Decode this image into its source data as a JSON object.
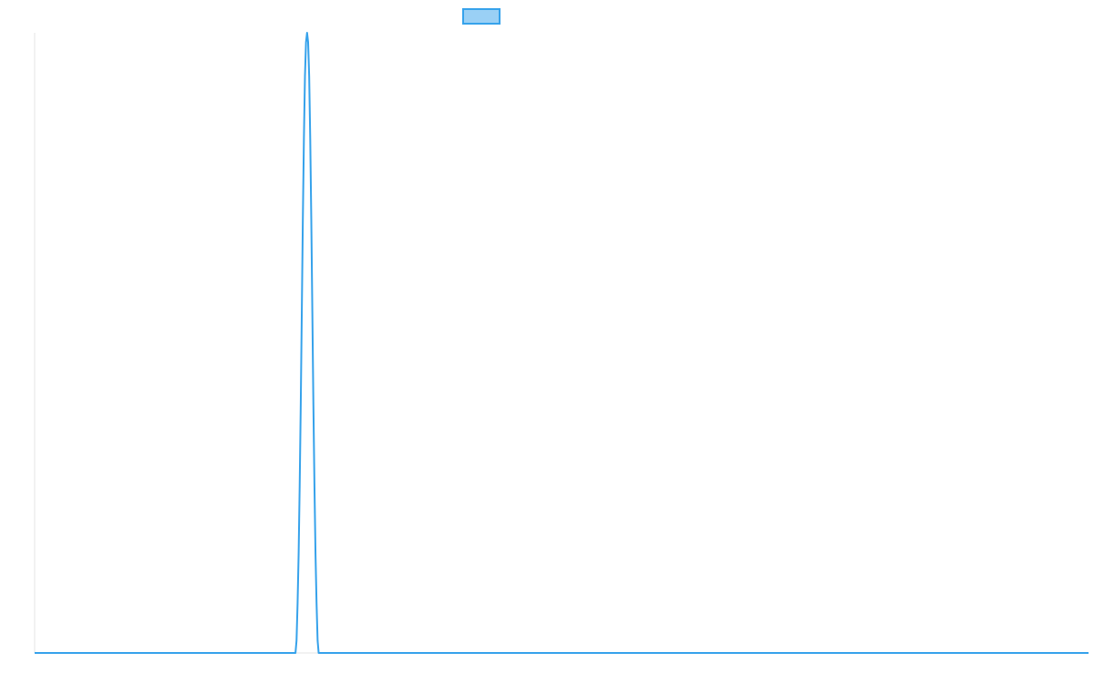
{
  "chart_data": {
    "type": "line",
    "title": "",
    "xlabel": "",
    "ylabel": "",
    "grid": false,
    "legend_position": "top",
    "series": [
      {
        "name": "",
        "color": "#36a2eb",
        "fill_color": "#9ad0f5",
        "points": [
          [
            0,
            0
          ],
          [
            0.2475,
            0
          ],
          [
            0.2485,
            0.02
          ],
          [
            0.2495,
            0.08
          ],
          [
            0.2505,
            0.16
          ],
          [
            0.2515,
            0.27
          ],
          [
            0.2525,
            0.4
          ],
          [
            0.2535,
            0.55
          ],
          [
            0.2545,
            0.7
          ],
          [
            0.2555,
            0.83
          ],
          [
            0.2565,
            0.93
          ],
          [
            0.2575,
            0.985
          ],
          [
            0.2585,
            1.0
          ],
          [
            0.2595,
            0.985
          ],
          [
            0.2605,
            0.93
          ],
          [
            0.2615,
            0.83
          ],
          [
            0.2625,
            0.7
          ],
          [
            0.2635,
            0.55
          ],
          [
            0.2645,
            0.4
          ],
          [
            0.2655,
            0.27
          ],
          [
            0.2665,
            0.16
          ],
          [
            0.2675,
            0.08
          ],
          [
            0.2685,
            0.02
          ],
          [
            0.2695,
            0
          ],
          [
            1,
            0
          ]
        ]
      }
    ]
  }
}
